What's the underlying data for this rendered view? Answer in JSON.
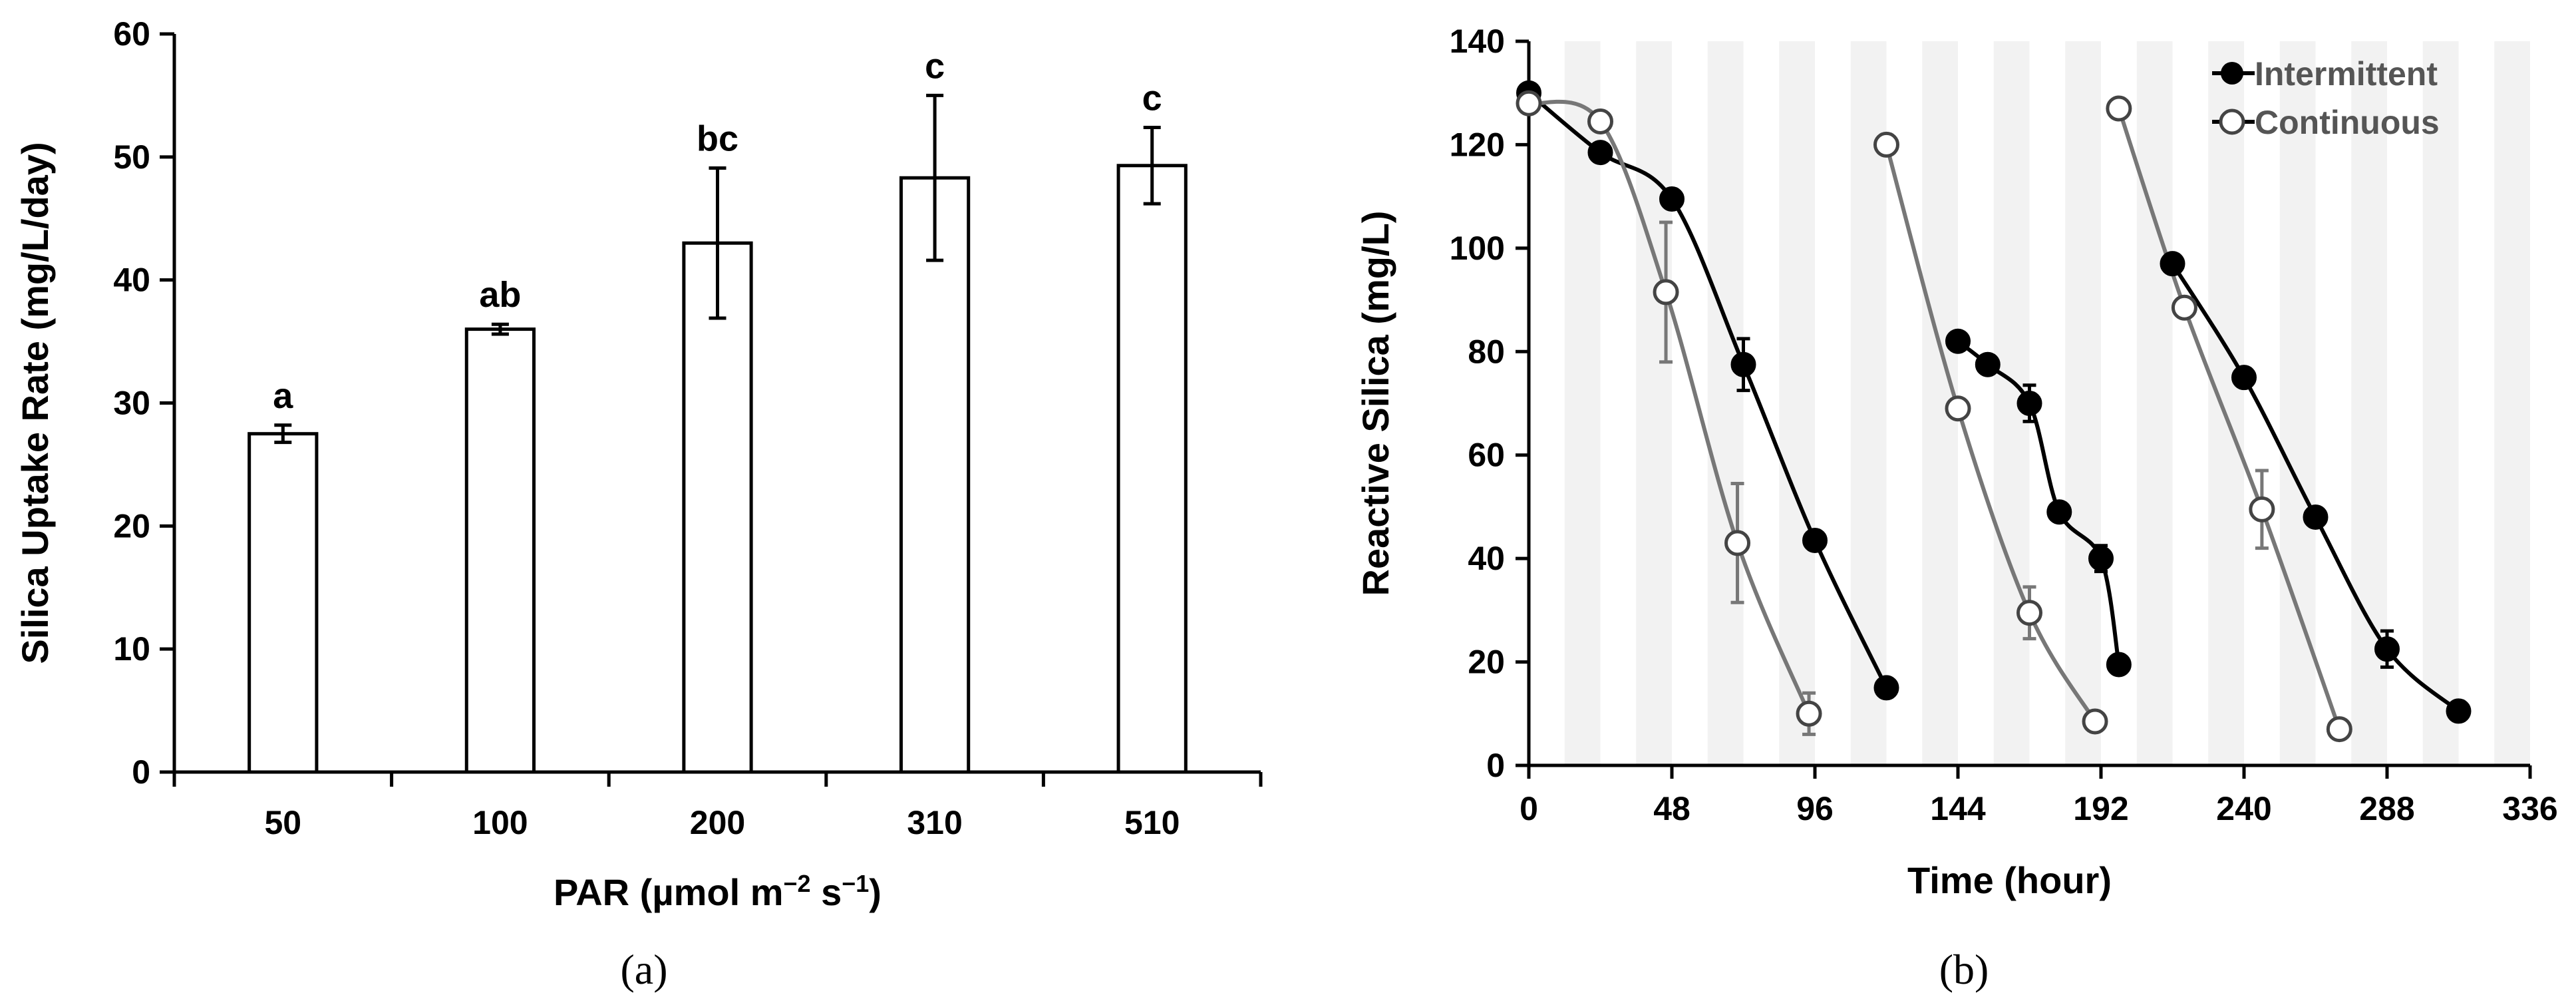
{
  "chart_data": [
    {
      "type": "bar",
      "panel_label": "(a)",
      "categories": [
        "50",
        "100",
        "200",
        "310",
        "510"
      ],
      "values": [
        27.5,
        36.0,
        43.0,
        48.3,
        49.3
      ],
      "error": [
        0.7,
        0.4,
        6.1,
        6.7,
        3.1
      ],
      "significance": [
        "a",
        "ab",
        "bc",
        "c",
        "c"
      ],
      "xlabel_parts": [
        "PAR (µmol m",
        "−2",
        " s",
        "−1",
        ")"
      ],
      "ylabel": "Silica Uptake Rate (mg/L/day)",
      "ylim": [
        0,
        60
      ],
      "yticks": [
        0,
        10,
        20,
        30,
        40,
        50,
        60
      ],
      "bar_fill": "#ffffff",
      "bar_stroke": "#000000",
      "grid": false
    },
    {
      "type": "line",
      "panel_label": "(b)",
      "xlabel": "Time (hour)",
      "ylabel": "Reactive Silica (mg/L)",
      "xlim": [
        0,
        336
      ],
      "ylim": [
        0,
        140
      ],
      "xticks": [
        0,
        48,
        96,
        144,
        192,
        240,
        288,
        336
      ],
      "yticks": [
        0,
        20,
        40,
        60,
        80,
        100,
        120,
        140
      ],
      "dark_period_shading": true,
      "shading_color": "#f2f2f2",
      "legend_position": "top-right",
      "series": [
        {
          "name": "Intermittent",
          "marker": "filled",
          "color": "#000000",
          "segments": [
            [
              [
                0,
                130
              ],
              [
                24,
                118.5
              ],
              [
                48,
                109.5
              ],
              [
                72,
                77.5
              ],
              [
                96,
                43.5
              ],
              [
                120,
                15
              ]
            ],
            [
              [
                144,
                82
              ],
              [
                154,
                77.5
              ],
              [
                168,
                70
              ],
              [
                178,
                49
              ],
              [
                192,
                40
              ],
              [
                198,
                19.5
              ]
            ],
            [
              [
                216,
                97
              ],
              [
                240,
                75
              ],
              [
                264,
                48
              ],
              [
                288,
                22.5
              ],
              [
                312,
                10.5
              ]
            ]
          ],
          "errors": [
            [
              0.5,
              1.5,
              1.5,
              5,
              1.5,
              0.5
            ],
            [
              1.5,
              1.5,
              3.5,
              1,
              2.5,
              0.5
            ],
            [
              1.5,
              1,
              0.5,
              3.5,
              0.5
            ]
          ]
        },
        {
          "name": "Continuous",
          "marker": "open",
          "color": "#777777",
          "segments": [
            [
              [
                0,
                128
              ],
              [
                24,
                124.5
              ],
              [
                46,
                91.5
              ],
              [
                70,
                43
              ],
              [
                94,
                10
              ]
            ],
            [
              [
                120,
                120
              ],
              [
                144,
                69
              ],
              [
                168,
                29.5
              ],
              [
                190,
                8.5
              ]
            ],
            [
              [
                198,
                127
              ],
              [
                220,
                88.5
              ],
              [
                246,
                49.5
              ],
              [
                272,
                7
              ]
            ]
          ],
          "errors": [
            [
              0.5,
              1,
              13.5,
              11.5,
              4
            ],
            [
              0.5,
              0.5,
              5,
              0.5
            ],
            [
              0.5,
              1,
              7.5,
              0.5
            ]
          ]
        }
      ]
    }
  ]
}
